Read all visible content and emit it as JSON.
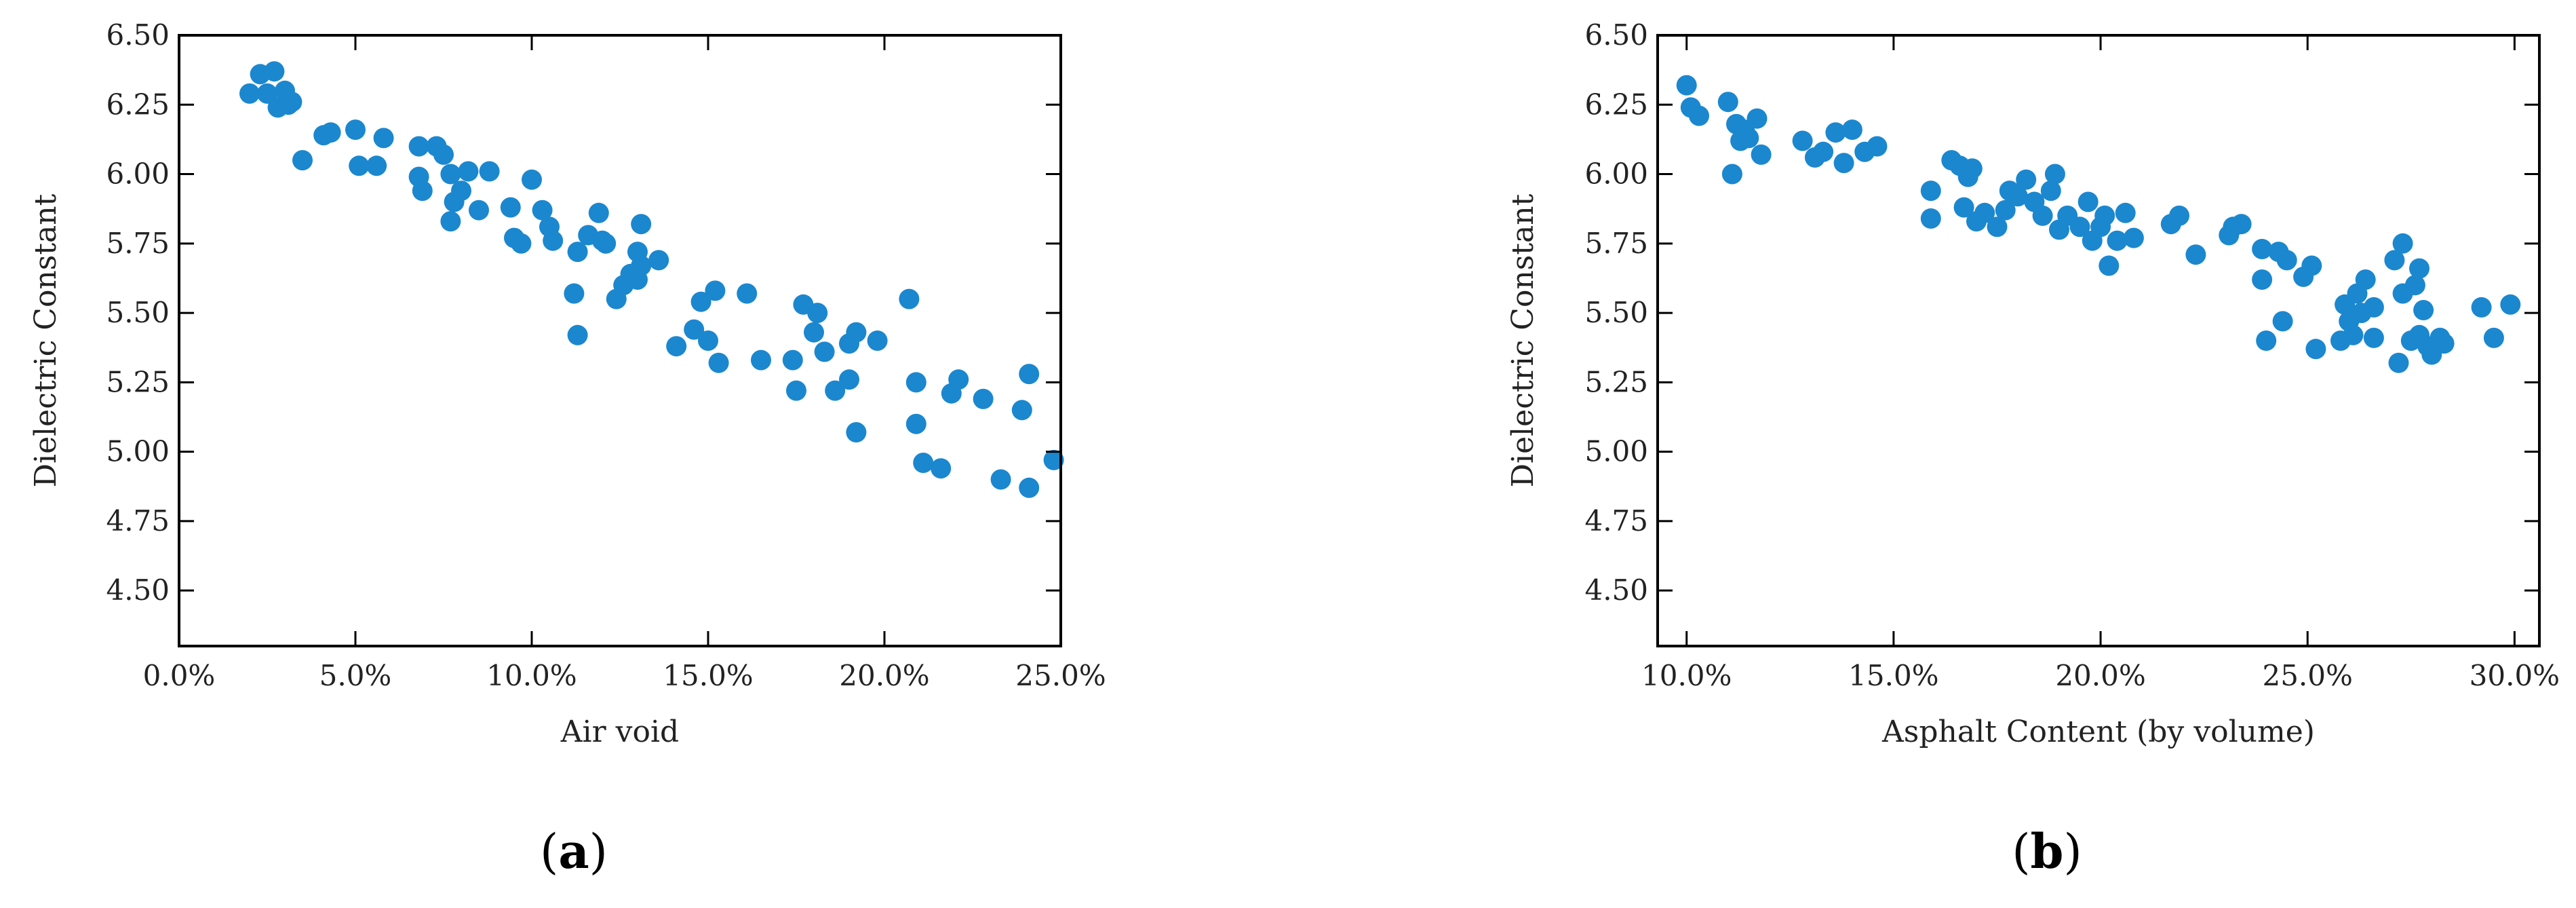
{
  "colors": {
    "point": "#1b87cf",
    "axis": "#000000"
  },
  "chart_data": [
    {
      "type": "scatter",
      "caption_letter": "a",
      "xlabel": "Air void",
      "ylabel": "Dielectric Constant",
      "xlim": [
        0,
        25
      ],
      "ylim": [
        4.3,
        6.5
      ],
      "x_ticks": [
        "0.0%",
        "5.0%",
        "10.0%",
        "15.0%",
        "20.0%",
        "25.0%"
      ],
      "x_tick_values": [
        0,
        5,
        10,
        15,
        20,
        25
      ],
      "y_ticks": [
        "4.50",
        "4.75",
        "5.00",
        "5.25",
        "5.50",
        "5.75",
        "6.00",
        "6.25",
        "6.50"
      ],
      "y_tick_values": [
        4.5,
        4.75,
        5.0,
        5.25,
        5.5,
        5.75,
        6.0,
        6.25,
        6.5
      ],
      "grid": false,
      "points": [
        [
          2.0,
          6.29
        ],
        [
          2.3,
          6.36
        ],
        [
          2.5,
          6.29
        ],
        [
          2.7,
          6.37
        ],
        [
          2.8,
          6.24
        ],
        [
          3.0,
          6.3
        ],
        [
          3.1,
          6.25
        ],
        [
          3.2,
          6.26
        ],
        [
          3.5,
          6.05
        ],
        [
          4.1,
          6.14
        ],
        [
          4.3,
          6.15
        ],
        [
          5.0,
          6.16
        ],
        [
          5.1,
          6.03
        ],
        [
          5.6,
          6.03
        ],
        [
          5.8,
          6.13
        ],
        [
          6.8,
          6.1
        ],
        [
          6.8,
          5.99
        ],
        [
          6.9,
          5.94
        ],
        [
          7.3,
          6.1
        ],
        [
          7.5,
          6.07
        ],
        [
          7.7,
          6.0
        ],
        [
          7.7,
          5.83
        ],
        [
          7.8,
          5.9
        ],
        [
          8.0,
          5.94
        ],
        [
          8.2,
          6.01
        ],
        [
          8.5,
          5.87
        ],
        [
          8.8,
          6.01
        ],
        [
          9.4,
          5.88
        ],
        [
          9.5,
          5.77
        ],
        [
          9.7,
          5.75
        ],
        [
          10.0,
          5.98
        ],
        [
          10.3,
          5.87
        ],
        [
          10.5,
          5.81
        ],
        [
          10.6,
          5.76
        ],
        [
          11.2,
          5.57
        ],
        [
          11.3,
          5.42
        ],
        [
          11.3,
          5.72
        ],
        [
          11.6,
          5.78
        ],
        [
          11.9,
          5.86
        ],
        [
          12.0,
          5.76
        ],
        [
          12.1,
          5.75
        ],
        [
          12.4,
          5.55
        ],
        [
          12.6,
          5.6
        ],
        [
          12.8,
          5.64
        ],
        [
          13.0,
          5.72
        ],
        [
          13.0,
          5.62
        ],
        [
          13.1,
          5.67
        ],
        [
          13.1,
          5.82
        ],
        [
          13.6,
          5.69
        ],
        [
          14.1,
          5.38
        ],
        [
          14.6,
          5.44
        ],
        [
          14.8,
          5.54
        ],
        [
          15.0,
          5.4
        ],
        [
          15.2,
          5.58
        ],
        [
          15.3,
          5.32
        ],
        [
          16.1,
          5.57
        ],
        [
          16.5,
          5.33
        ],
        [
          17.4,
          5.33
        ],
        [
          17.5,
          5.22
        ],
        [
          17.7,
          5.53
        ],
        [
          18.0,
          5.43
        ],
        [
          18.1,
          5.5
        ],
        [
          18.3,
          5.36
        ],
        [
          18.6,
          5.22
        ],
        [
          19.0,
          5.26
        ],
        [
          19.0,
          5.39
        ],
        [
          19.2,
          5.43
        ],
        [
          19.2,
          5.07
        ],
        [
          19.8,
          5.4
        ],
        [
          20.7,
          5.55
        ],
        [
          20.9,
          5.25
        ],
        [
          20.9,
          5.1
        ],
        [
          21.1,
          4.96
        ],
        [
          21.6,
          4.94
        ],
        [
          21.9,
          5.21
        ],
        [
          22.1,
          5.26
        ],
        [
          22.8,
          5.19
        ],
        [
          23.3,
          4.9
        ],
        [
          23.9,
          5.15
        ],
        [
          24.1,
          5.28
        ],
        [
          24.1,
          4.87
        ],
        [
          24.8,
          4.97
        ]
      ]
    },
    {
      "type": "scatter",
      "caption_letter": "b",
      "xlabel": "Asphalt Content (by volume)",
      "ylabel": "Dielectric Constant",
      "xlim": [
        9.3,
        30.6
      ],
      "ylim": [
        4.3,
        6.5
      ],
      "x_ticks": [
        "10.0%",
        "15.0%",
        "20.0%",
        "25.0%",
        "30.0%"
      ],
      "x_tick_values": [
        10,
        15,
        20,
        25,
        30
      ],
      "y_ticks": [
        "4.50",
        "4.75",
        "5.00",
        "5.25",
        "5.50",
        "5.75",
        "6.00",
        "6.25",
        "6.50"
      ],
      "y_tick_values": [
        4.5,
        4.75,
        5.0,
        5.25,
        5.5,
        5.75,
        6.0,
        6.25,
        6.5
      ],
      "grid": false,
      "points": [
        [
          10.0,
          6.32
        ],
        [
          10.1,
          6.24
        ],
        [
          10.3,
          6.21
        ],
        [
          11.0,
          6.26
        ],
        [
          11.1,
          6.0
        ],
        [
          11.2,
          6.18
        ],
        [
          11.3,
          6.12
        ],
        [
          11.4,
          6.16
        ],
        [
          11.5,
          6.13
        ],
        [
          11.7,
          6.2
        ],
        [
          11.8,
          6.07
        ],
        [
          12.8,
          6.12
        ],
        [
          13.1,
          6.06
        ],
        [
          13.3,
          6.08
        ],
        [
          13.6,
          6.15
        ],
        [
          13.8,
          6.04
        ],
        [
          14.0,
          6.16
        ],
        [
          14.3,
          6.08
        ],
        [
          14.6,
          6.1
        ],
        [
          15.9,
          5.94
        ],
        [
          15.9,
          5.84
        ],
        [
          16.4,
          6.05
        ],
        [
          16.6,
          6.03
        ],
        [
          16.7,
          5.88
        ],
        [
          16.8,
          5.99
        ],
        [
          16.9,
          6.02
        ],
        [
          17.0,
          5.83
        ],
        [
          17.2,
          5.86
        ],
        [
          17.5,
          5.81
        ],
        [
          17.7,
          5.87
        ],
        [
          17.8,
          5.94
        ],
        [
          18.0,
          5.92
        ],
        [
          18.2,
          5.98
        ],
        [
          18.4,
          5.9
        ],
        [
          18.6,
          5.85
        ],
        [
          18.8,
          5.94
        ],
        [
          18.9,
          6.0
        ],
        [
          19.0,
          5.8
        ],
        [
          19.2,
          5.85
        ],
        [
          19.5,
          5.81
        ],
        [
          19.7,
          5.9
        ],
        [
          19.8,
          5.76
        ],
        [
          20.0,
          5.81
        ],
        [
          20.1,
          5.85
        ],
        [
          20.2,
          5.67
        ],
        [
          20.4,
          5.76
        ],
        [
          20.6,
          5.86
        ],
        [
          20.8,
          5.77
        ],
        [
          21.7,
          5.82
        ],
        [
          21.9,
          5.85
        ],
        [
          22.3,
          5.71
        ],
        [
          23.1,
          5.78
        ],
        [
          23.2,
          5.81
        ],
        [
          23.4,
          5.82
        ],
        [
          23.9,
          5.73
        ],
        [
          23.9,
          5.62
        ],
        [
          24.0,
          5.4
        ],
        [
          24.3,
          5.72
        ],
        [
          24.4,
          5.47
        ],
        [
          24.5,
          5.69
        ],
        [
          24.9,
          5.63
        ],
        [
          25.1,
          5.67
        ],
        [
          25.2,
          5.37
        ],
        [
          25.8,
          5.4
        ],
        [
          25.9,
          5.53
        ],
        [
          26.0,
          5.47
        ],
        [
          26.1,
          5.42
        ],
        [
          26.2,
          5.57
        ],
        [
          26.3,
          5.5
        ],
        [
          26.4,
          5.62
        ],
        [
          26.6,
          5.41
        ],
        [
          26.6,
          5.52
        ],
        [
          27.1,
          5.69
        ],
        [
          27.2,
          5.32
        ],
        [
          27.3,
          5.75
        ],
        [
          27.3,
          5.57
        ],
        [
          27.5,
          5.4
        ],
        [
          27.6,
          5.6
        ],
        [
          27.7,
          5.66
        ],
        [
          27.7,
          5.42
        ],
        [
          27.8,
          5.51
        ],
        [
          27.9,
          5.38
        ],
        [
          28.0,
          5.35
        ],
        [
          28.2,
          5.41
        ],
        [
          28.3,
          5.39
        ],
        [
          29.2,
          5.52
        ],
        [
          29.5,
          5.41
        ],
        [
          29.9,
          5.53
        ]
      ]
    }
  ]
}
